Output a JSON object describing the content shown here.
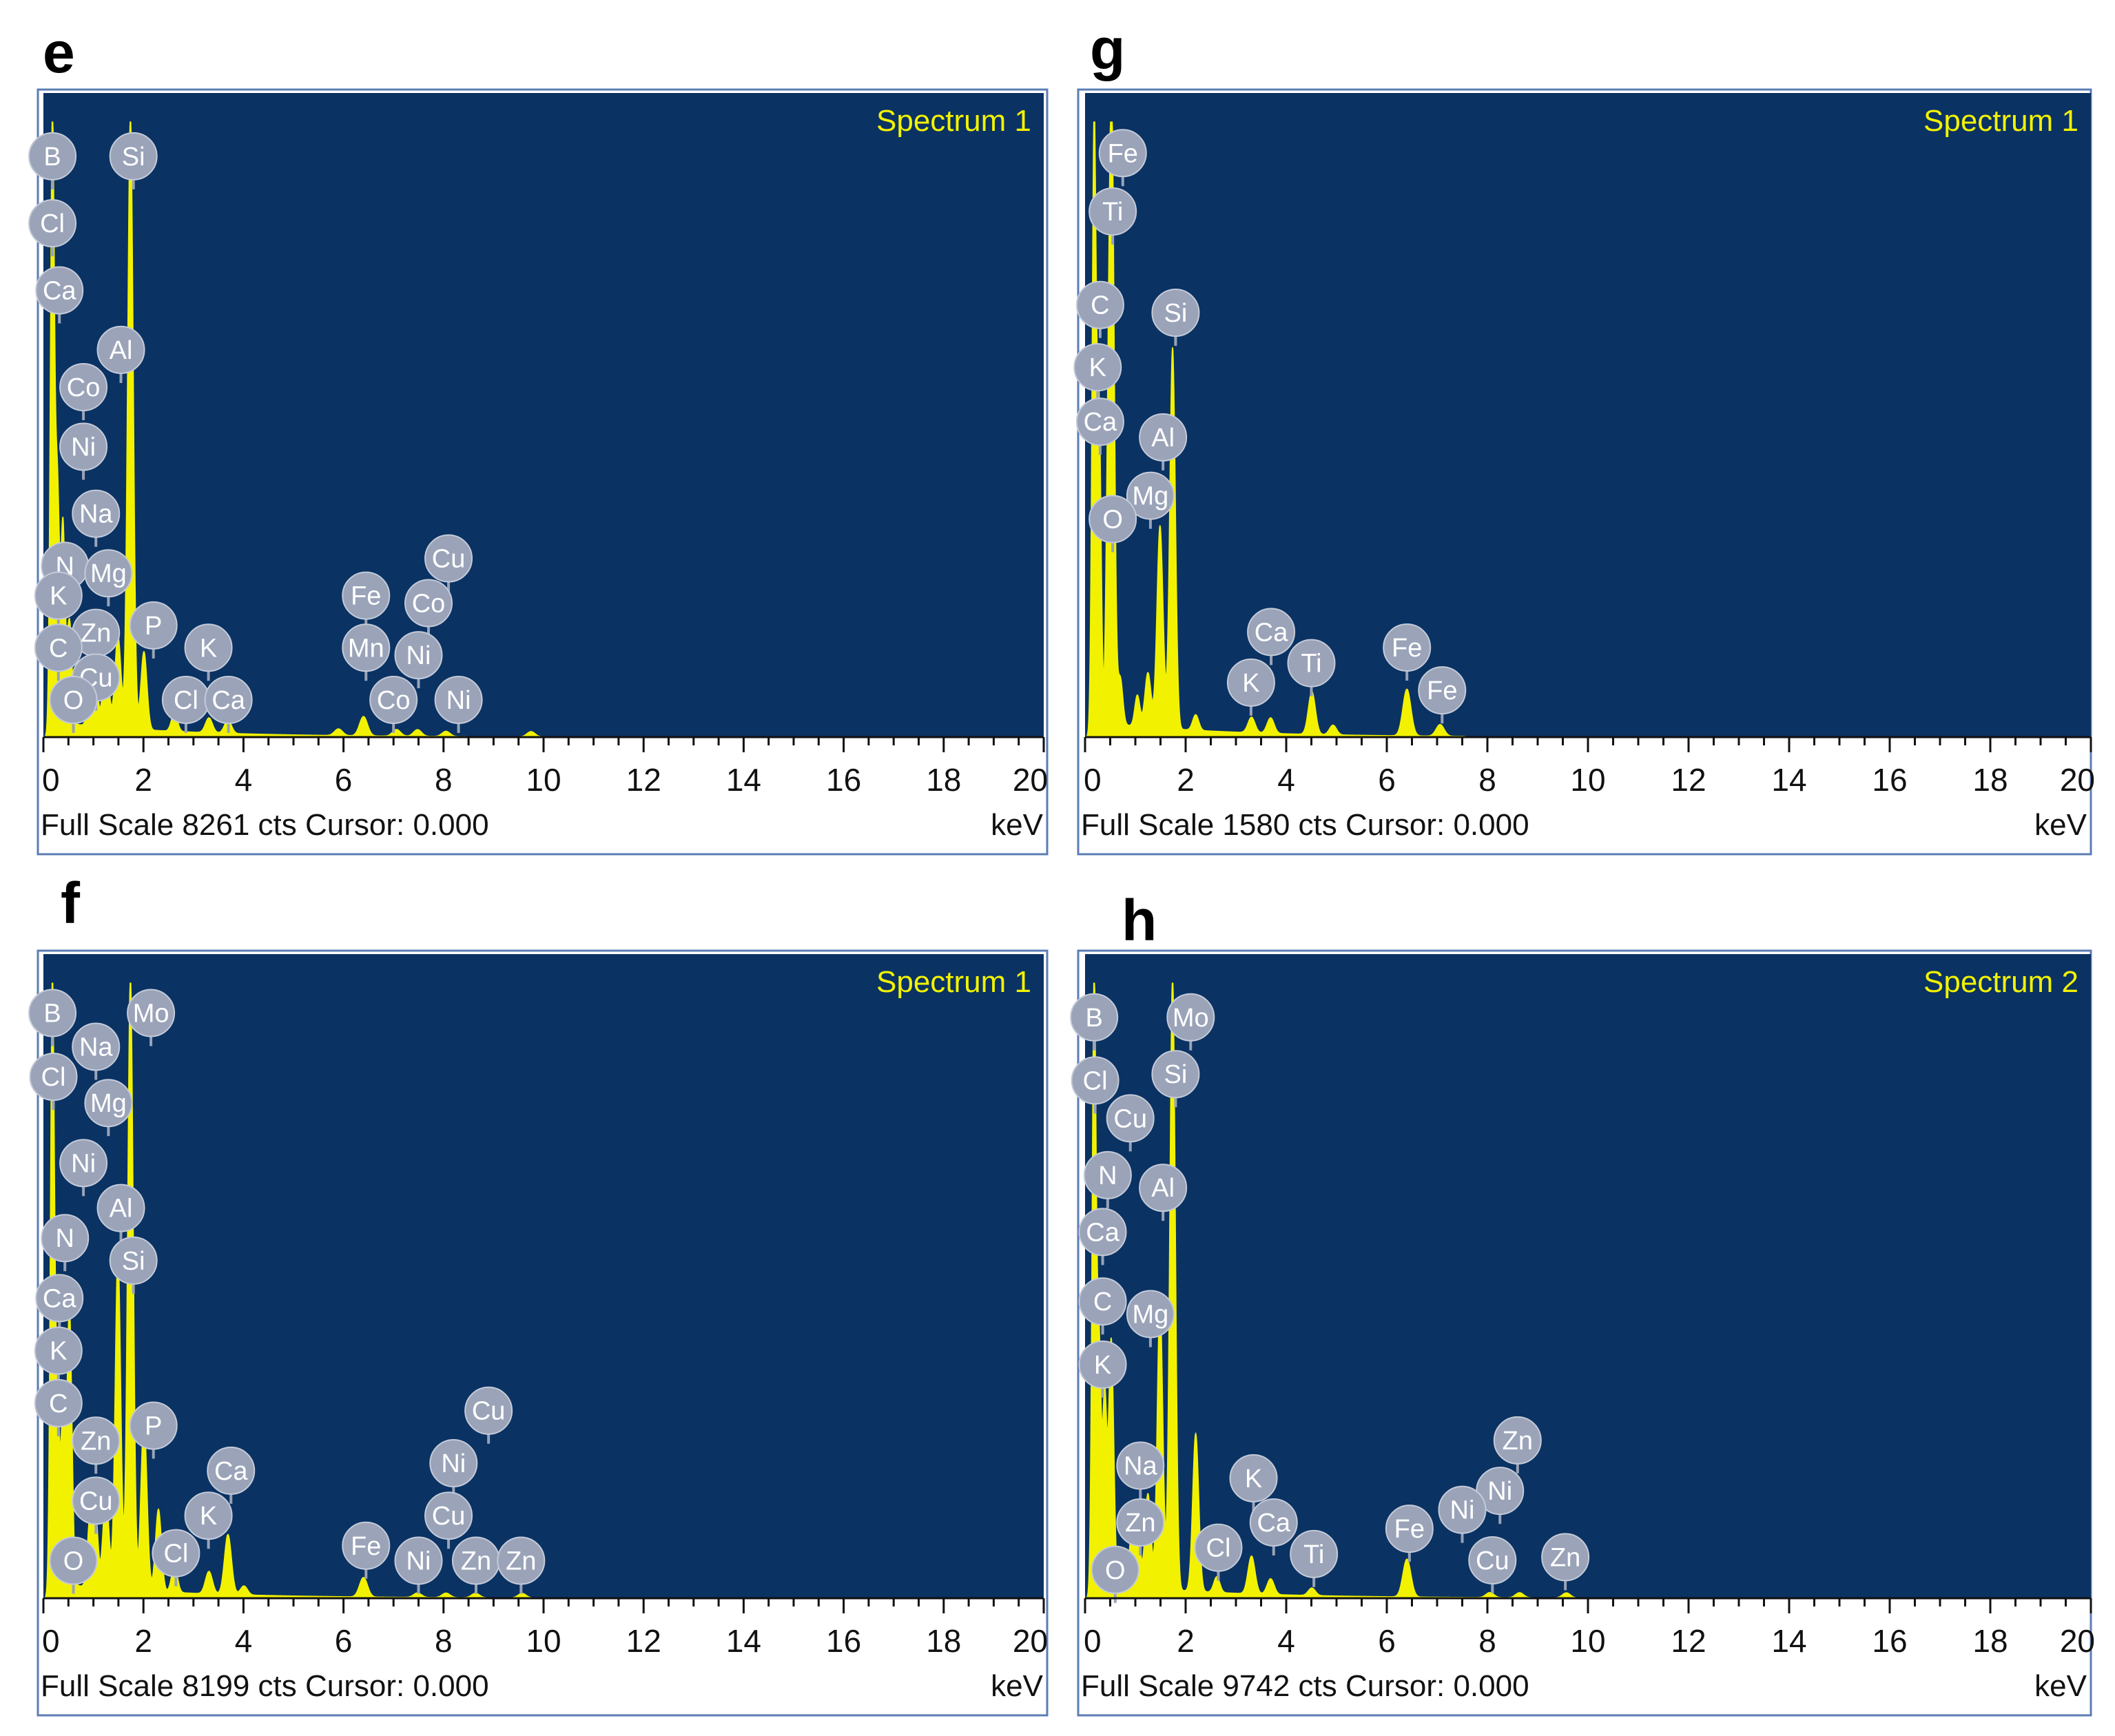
{
  "figure": {
    "colors": {
      "plot_bg": "#0a3263",
      "spectrum": "#f2f200",
      "label_bubble": "#9aa3b8",
      "label_text": "#ffffff",
      "axis": "#111111"
    },
    "icons": {
      "element_label": "grey-circle-bubble"
    }
  },
  "chart_data": [
    {
      "type": "area",
      "panel": "e",
      "spectrum_name": "Spectrum 1",
      "footer_left": "Full Scale 8261 cts Cursor: 0.000",
      "xlabel": "keV",
      "xlim": [
        0,
        20
      ],
      "ylim": [
        0,
        8261
      ],
      "x_ticks": [
        "0",
        "2",
        "4",
        "6",
        "8",
        "10",
        "12",
        "14",
        "16",
        "18",
        "20"
      ],
      "peaks": [
        {
          "e": 0.18,
          "c": 8261,
          "w": 0.04
        },
        {
          "e": 0.28,
          "c": 3200,
          "w": 0.04
        },
        {
          "e": 0.39,
          "c": 2700,
          "w": 0.04
        },
        {
          "e": 0.52,
          "c": 1400,
          "w": 0.05
        },
        {
          "e": 0.93,
          "c": 500,
          "w": 0.05
        },
        {
          "e": 1.04,
          "c": 650,
          "w": 0.05
        },
        {
          "e": 1.25,
          "c": 950,
          "w": 0.06
        },
        {
          "e": 1.49,
          "c": 1250,
          "w": 0.06
        },
        {
          "e": 1.74,
          "c": 8261,
          "w": 0.055
        },
        {
          "e": 2.01,
          "c": 1050,
          "w": 0.06
        },
        {
          "e": 2.62,
          "c": 250,
          "w": 0.06
        },
        {
          "e": 3.31,
          "c": 200,
          "w": 0.07
        },
        {
          "e": 3.69,
          "c": 180,
          "w": 0.07
        },
        {
          "e": 5.9,
          "c": 90,
          "w": 0.08
        },
        {
          "e": 6.4,
          "c": 260,
          "w": 0.08
        },
        {
          "e": 7.06,
          "c": 90,
          "w": 0.08
        },
        {
          "e": 7.48,
          "c": 90,
          "w": 0.08
        },
        {
          "e": 8.05,
          "c": 70,
          "w": 0.08
        },
        {
          "e": 9.75,
          "c": 70,
          "w": 0.08
        }
      ],
      "labels": [
        {
          "t": "B",
          "e": 0.18,
          "c": 7800
        },
        {
          "t": "Si",
          "e": 1.8,
          "c": 7800
        },
        {
          "t": "Cl",
          "e": 0.18,
          "c": 6900
        },
        {
          "t": "Ca",
          "e": 0.32,
          "c": 6000
        },
        {
          "t": "Al",
          "e": 1.55,
          "c": 5200
        },
        {
          "t": "Co",
          "e": 0.8,
          "c": 4700
        },
        {
          "t": "Ni",
          "e": 0.8,
          "c": 3900
        },
        {
          "t": "Na",
          "e": 1.05,
          "c": 3000
        },
        {
          "t": "N",
          "e": 0.43,
          "c": 2300
        },
        {
          "t": "Mg",
          "e": 1.3,
          "c": 2200
        },
        {
          "t": "K",
          "e": 0.3,
          "c": 1900
        },
        {
          "t": "Zn",
          "e": 1.05,
          "c": 1400
        },
        {
          "t": "P",
          "e": 2.2,
          "c": 1500
        },
        {
          "t": "C",
          "e": 0.3,
          "c": 1200
        },
        {
          "t": "Cu",
          "e": 1.05,
          "c": 800
        },
        {
          "t": "O",
          "e": 0.6,
          "c": 500
        },
        {
          "t": "K",
          "e": 3.3,
          "c": 1200
        },
        {
          "t": "Cl",
          "e": 2.85,
          "c": 500
        },
        {
          "t": "Ca",
          "e": 3.7,
          "c": 500
        },
        {
          "t": "Fe",
          "e": 6.45,
          "c": 1900
        },
        {
          "t": "Mn",
          "e": 6.45,
          "c": 1200
        },
        {
          "t": "Cu",
          "e": 8.1,
          "c": 2400
        },
        {
          "t": "Co",
          "e": 7.7,
          "c": 1800
        },
        {
          "t": "Ni",
          "e": 7.5,
          "c": 1100
        },
        {
          "t": "Co",
          "e": 7.0,
          "c": 500
        },
        {
          "t": "Ni",
          "e": 8.3,
          "c": 500
        }
      ]
    },
    {
      "type": "area",
      "panel": "g",
      "spectrum_name": "Spectrum 1",
      "footer_left": "Full Scale 1580 cts Cursor: 0.000",
      "xlabel": "keV",
      "xlim": [
        0,
        20
      ],
      "ylim": [
        0,
        1580
      ],
      "x_ticks": [
        "0",
        "2",
        "4",
        "6",
        "8",
        "10",
        "12",
        "14",
        "16",
        "18",
        "20"
      ],
      "peaks": [
        {
          "e": 0.18,
          "c": 1580,
          "w": 0.04
        },
        {
          "e": 0.28,
          "c": 800,
          "w": 0.04
        },
        {
          "e": 0.45,
          "c": 450,
          "w": 0.04
        },
        {
          "e": 0.53,
          "c": 1580,
          "w": 0.05
        },
        {
          "e": 0.7,
          "c": 120,
          "w": 0.05
        },
        {
          "e": 1.04,
          "c": 80,
          "w": 0.05
        },
        {
          "e": 1.25,
          "c": 140,
          "w": 0.06
        },
        {
          "e": 1.49,
          "c": 520,
          "w": 0.06
        },
        {
          "e": 1.74,
          "c": 980,
          "w": 0.055
        },
        {
          "e": 2.2,
          "c": 40,
          "w": 0.06
        },
        {
          "e": 3.31,
          "c": 40,
          "w": 0.07
        },
        {
          "e": 3.69,
          "c": 40,
          "w": 0.07
        },
        {
          "e": 4.51,
          "c": 110,
          "w": 0.07
        },
        {
          "e": 4.93,
          "c": 25,
          "w": 0.07
        },
        {
          "e": 6.4,
          "c": 120,
          "w": 0.08
        },
        {
          "e": 7.06,
          "c": 30,
          "w": 0.08
        }
      ],
      "labels": [
        {
          "t": "Fe",
          "e": 0.75,
          "c": 1500
        },
        {
          "t": "Ti",
          "e": 0.55,
          "c": 1350
        },
        {
          "t": "C",
          "e": 0.3,
          "c": 1110
        },
        {
          "t": "Si",
          "e": 1.8,
          "c": 1090
        },
        {
          "t": "K",
          "e": 0.25,
          "c": 950
        },
        {
          "t": "Ca",
          "e": 0.3,
          "c": 810
        },
        {
          "t": "Al",
          "e": 1.55,
          "c": 770
        },
        {
          "t": "Mg",
          "e": 1.3,
          "c": 620
        },
        {
          "t": "O",
          "e": 0.55,
          "c": 560
        },
        {
          "t": "Ca",
          "e": 3.7,
          "c": 270
        },
        {
          "t": "Ti",
          "e": 4.5,
          "c": 190
        },
        {
          "t": "K",
          "e": 3.3,
          "c": 140
        },
        {
          "t": "Fe",
          "e": 6.4,
          "c": 230
        },
        {
          "t": "Fe",
          "e": 7.1,
          "c": 120
        }
      ]
    },
    {
      "type": "area",
      "panel": "f",
      "spectrum_name": "Spectrum 1",
      "footer_left": "Full Scale 8199 cts Cursor: 0.000",
      "xlabel": "keV",
      "xlim": [
        0,
        20
      ],
      "ylim": [
        0,
        8199
      ],
      "x_ticks": [
        "0",
        "2",
        "4",
        "6",
        "8",
        "10",
        "12",
        "14",
        "16",
        "18",
        "20"
      ],
      "peaks": [
        {
          "e": 0.18,
          "c": 8199,
          "w": 0.04
        },
        {
          "e": 0.28,
          "c": 2600,
          "w": 0.04
        },
        {
          "e": 0.39,
          "c": 2300,
          "w": 0.04
        },
        {
          "e": 0.52,
          "c": 3700,
          "w": 0.05
        },
        {
          "e": 0.93,
          "c": 900,
          "w": 0.05
        },
        {
          "e": 1.04,
          "c": 1000,
          "w": 0.05
        },
        {
          "e": 1.25,
          "c": 1250,
          "w": 0.06
        },
        {
          "e": 1.49,
          "c": 4500,
          "w": 0.055
        },
        {
          "e": 1.74,
          "c": 8199,
          "w": 0.055
        },
        {
          "e": 2.01,
          "c": 2300,
          "w": 0.06
        },
        {
          "e": 2.3,
          "c": 1100,
          "w": 0.06
        },
        {
          "e": 2.62,
          "c": 350,
          "w": 0.06
        },
        {
          "e": 3.31,
          "c": 300,
          "w": 0.07
        },
        {
          "e": 3.69,
          "c": 800,
          "w": 0.07
        },
        {
          "e": 4.01,
          "c": 120,
          "w": 0.07
        },
        {
          "e": 6.4,
          "c": 260,
          "w": 0.08
        },
        {
          "e": 7.48,
          "c": 60,
          "w": 0.08
        },
        {
          "e": 8.05,
          "c": 60,
          "w": 0.08
        },
        {
          "e": 8.64,
          "c": 60,
          "w": 0.08
        },
        {
          "e": 9.57,
          "c": 60,
          "w": 0.08
        }
      ],
      "labels": [
        {
          "t": "B",
          "e": 0.18,
          "c": 7800
        },
        {
          "t": "Mo",
          "e": 2.15,
          "c": 7800
        },
        {
          "t": "Na",
          "e": 1.05,
          "c": 7350
        },
        {
          "t": "Cl",
          "e": 0.2,
          "c": 6950
        },
        {
          "t": "Mg",
          "e": 1.3,
          "c": 6600
        },
        {
          "t": "Ni",
          "e": 0.8,
          "c": 5800
        },
        {
          "t": "Al",
          "e": 1.55,
          "c": 5200
        },
        {
          "t": "N",
          "e": 0.43,
          "c": 4800
        },
        {
          "t": "Si",
          "e": 1.8,
          "c": 4500
        },
        {
          "t": "Ca",
          "e": 0.32,
          "c": 4000
        },
        {
          "t": "K",
          "e": 0.3,
          "c": 3300
        },
        {
          "t": "C",
          "e": 0.3,
          "c": 2600
        },
        {
          "t": "P",
          "e": 2.2,
          "c": 2300
        },
        {
          "t": "Zn",
          "e": 1.05,
          "c": 2100
        },
        {
          "t": "Cu",
          "e": 1.05,
          "c": 1300
        },
        {
          "t": "O",
          "e": 0.6,
          "c": 500
        },
        {
          "t": "Cu",
          "e": 8.9,
          "c": 2500
        },
        {
          "t": "Ca",
          "e": 3.75,
          "c": 1700
        },
        {
          "t": "Ni",
          "e": 8.2,
          "c": 1800
        },
        {
          "t": "K",
          "e": 3.3,
          "c": 1100
        },
        {
          "t": "Cu",
          "e": 8.1,
          "c": 1100
        },
        {
          "t": "Cl",
          "e": 2.65,
          "c": 600
        },
        {
          "t": "Fe",
          "e": 6.45,
          "c": 700
        },
        {
          "t": "Ni",
          "e": 7.5,
          "c": 500
        },
        {
          "t": "Zn",
          "e": 8.65,
          "c": 500
        },
        {
          "t": "Zn",
          "e": 9.55,
          "c": 500
        }
      ]
    },
    {
      "type": "area",
      "panel": "h",
      "spectrum_name": "Spectrum 2",
      "footer_left": "Full Scale 9742 cts Cursor: 0.000",
      "xlabel": "keV",
      "xlim": [
        0,
        20
      ],
      "ylim": [
        0,
        9742
      ],
      "x_ticks": [
        "0",
        "2",
        "4",
        "6",
        "8",
        "10",
        "12",
        "14",
        "16",
        "18",
        "20"
      ],
      "peaks": [
        {
          "e": 0.18,
          "c": 9742,
          "w": 0.04
        },
        {
          "e": 0.28,
          "c": 3800,
          "w": 0.04
        },
        {
          "e": 0.39,
          "c": 3000,
          "w": 0.04
        },
        {
          "e": 0.52,
          "c": 3900,
          "w": 0.05
        },
        {
          "e": 0.93,
          "c": 900,
          "w": 0.05
        },
        {
          "e": 1.04,
          "c": 1200,
          "w": 0.05
        },
        {
          "e": 1.25,
          "c": 1500,
          "w": 0.06
        },
        {
          "e": 1.49,
          "c": 4600,
          "w": 0.055
        },
        {
          "e": 1.74,
          "c": 9742,
          "w": 0.055
        },
        {
          "e": 2.2,
          "c": 2500,
          "w": 0.06
        },
        {
          "e": 2.62,
          "c": 250,
          "w": 0.06
        },
        {
          "e": 3.31,
          "c": 600,
          "w": 0.07
        },
        {
          "e": 3.69,
          "c": 250,
          "w": 0.07
        },
        {
          "e": 4.51,
          "c": 120,
          "w": 0.07
        },
        {
          "e": 6.4,
          "c": 600,
          "w": 0.08
        },
        {
          "e": 8.05,
          "c": 80,
          "w": 0.08
        },
        {
          "e": 8.64,
          "c": 80,
          "w": 0.08
        },
        {
          "e": 9.57,
          "c": 80,
          "w": 0.08
        }
      ],
      "labels": [
        {
          "t": "B",
          "e": 0.18,
          "c": 9200
        },
        {
          "t": "Mo",
          "e": 2.1,
          "c": 9200
        },
        {
          "t": "Si",
          "e": 1.8,
          "c": 8300
        },
        {
          "t": "Cl",
          "e": 0.2,
          "c": 8200
        },
        {
          "t": "Cu",
          "e": 0.9,
          "c": 7600
        },
        {
          "t": "N",
          "e": 0.45,
          "c": 6700
        },
        {
          "t": "Al",
          "e": 1.55,
          "c": 6500
        },
        {
          "t": "Ca",
          "e": 0.35,
          "c": 5800
        },
        {
          "t": "C",
          "e": 0.35,
          "c": 4700
        },
        {
          "t": "Mg",
          "e": 1.3,
          "c": 4500
        },
        {
          "t": "K",
          "e": 0.35,
          "c": 3700
        },
        {
          "t": "Zn",
          "e": 8.6,
          "c": 2500
        },
        {
          "t": "Ni",
          "e": 8.25,
          "c": 1700
        },
        {
          "t": "Na",
          "e": 1.1,
          "c": 2100
        },
        {
          "t": "K",
          "e": 3.35,
          "c": 1900
        },
        {
          "t": "Ni",
          "e": 7.5,
          "c": 1400
        },
        {
          "t": "Ca",
          "e": 3.75,
          "c": 1200
        },
        {
          "t": "Fe",
          "e": 6.45,
          "c": 1100
        },
        {
          "t": "Zn",
          "e": 1.1,
          "c": 1200
        },
        {
          "t": "Cl",
          "e": 2.65,
          "c": 800
        },
        {
          "t": "Ti",
          "e": 4.55,
          "c": 700
        },
        {
          "t": "Cu",
          "e": 8.1,
          "c": 600
        },
        {
          "t": "Zn",
          "e": 9.55,
          "c": 650
        },
        {
          "t": "O",
          "e": 0.6,
          "c": 450
        }
      ]
    }
  ]
}
